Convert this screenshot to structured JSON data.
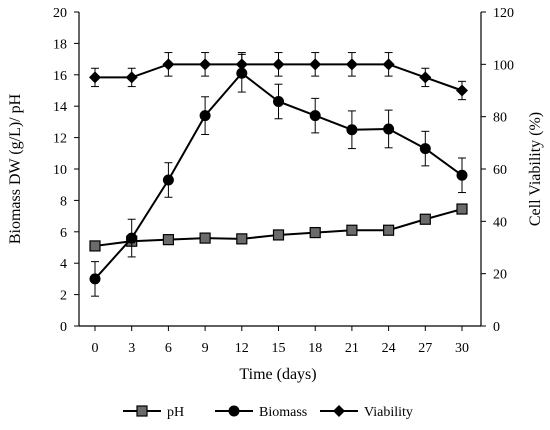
{
  "chart_data": {
    "type": "line",
    "title": "",
    "xlabel": "Time (days)",
    "ylabel_left": "Biomass DW (g/L)/ pH",
    "ylabel_right": "Cell Viability  (%)",
    "x": [
      0,
      3,
      6,
      9,
      12,
      15,
      18,
      21,
      24,
      27,
      30
    ],
    "ylim_left": [
      0,
      20
    ],
    "yticks_left": [
      0,
      2,
      4,
      6,
      8,
      10,
      12,
      14,
      16,
      18,
      20
    ],
    "ylim_right": [
      0,
      120
    ],
    "yticks_right": [
      0,
      20,
      40,
      60,
      80,
      100,
      120
    ],
    "grid": false,
    "legend_position": "bottom",
    "series": [
      {
        "name": "pH",
        "axis": "left",
        "marker": "square",
        "values": [
          5.1,
          5.4,
          5.5,
          5.6,
          5.55,
          5.8,
          5.95,
          6.1,
          6.1,
          6.8,
          7.45
        ],
        "errors": [
          0,
          0,
          0,
          0,
          0,
          0,
          0,
          0,
          0,
          0,
          0
        ]
      },
      {
        "name": "Biomass",
        "axis": "left",
        "marker": "circle",
        "values": [
          3.0,
          5.6,
          9.3,
          13.4,
          16.1,
          14.3,
          13.4,
          12.5,
          12.55,
          11.3,
          9.6
        ],
        "errors": [
          1.1,
          1.2,
          1.1,
          1.2,
          1.2,
          1.1,
          1.1,
          1.2,
          1.2,
          1.1,
          1.1
        ]
      },
      {
        "name": "Viability",
        "axis": "right",
        "marker": "diamond",
        "values": [
          95,
          95,
          100,
          100,
          100,
          100,
          100,
          100,
          100,
          95,
          90
        ],
        "errors": [
          3.5,
          3.5,
          4.5,
          4.5,
          4.5,
          4.5,
          4.5,
          4.5,
          4.5,
          3.5,
          3.5
        ]
      }
    ]
  }
}
